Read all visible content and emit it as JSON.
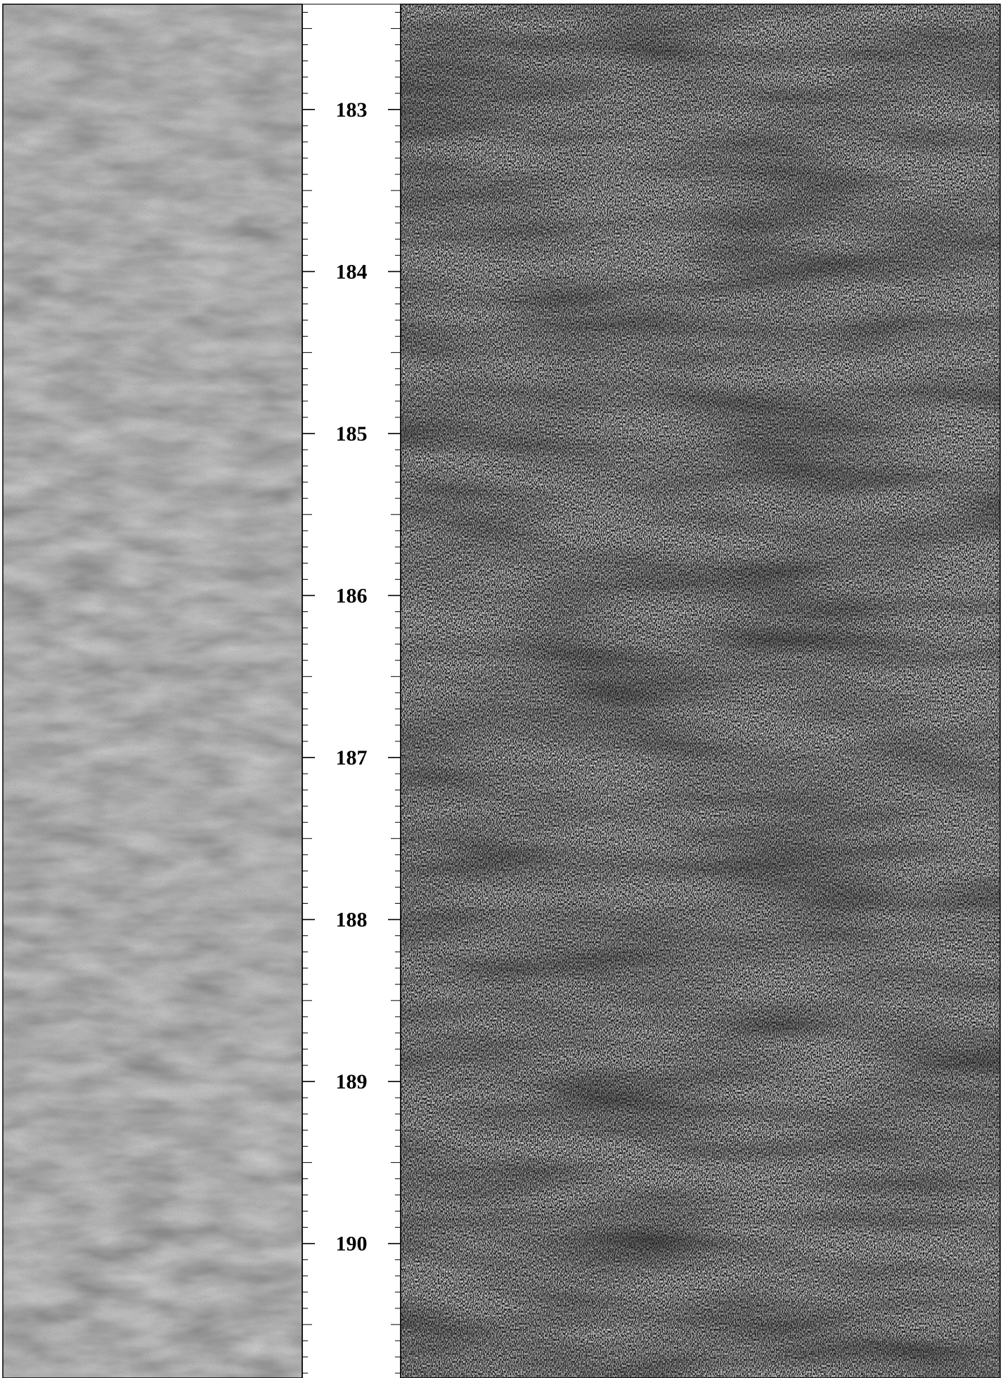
{
  "depth_track": {
    "depth_range": [
      182.35,
      190.83
    ],
    "major_tick_labels": [
      "183",
      "184",
      "185",
      "186",
      "187",
      "188",
      "189",
      "190"
    ],
    "major_tick_values": [
      183,
      184,
      185,
      186,
      187,
      188,
      189,
      190
    ],
    "minor_tick_step": 0.1
  },
  "left_image_track": {
    "description_type": "grayscale-log-image",
    "base_color": "#8a8a8a",
    "speckle_color": "#3a3a3a"
  },
  "right_image_track": {
    "description_type": "grayscale-log-image",
    "base_color": "#1c1c1c",
    "speckle_color": "#bdbdbd"
  }
}
